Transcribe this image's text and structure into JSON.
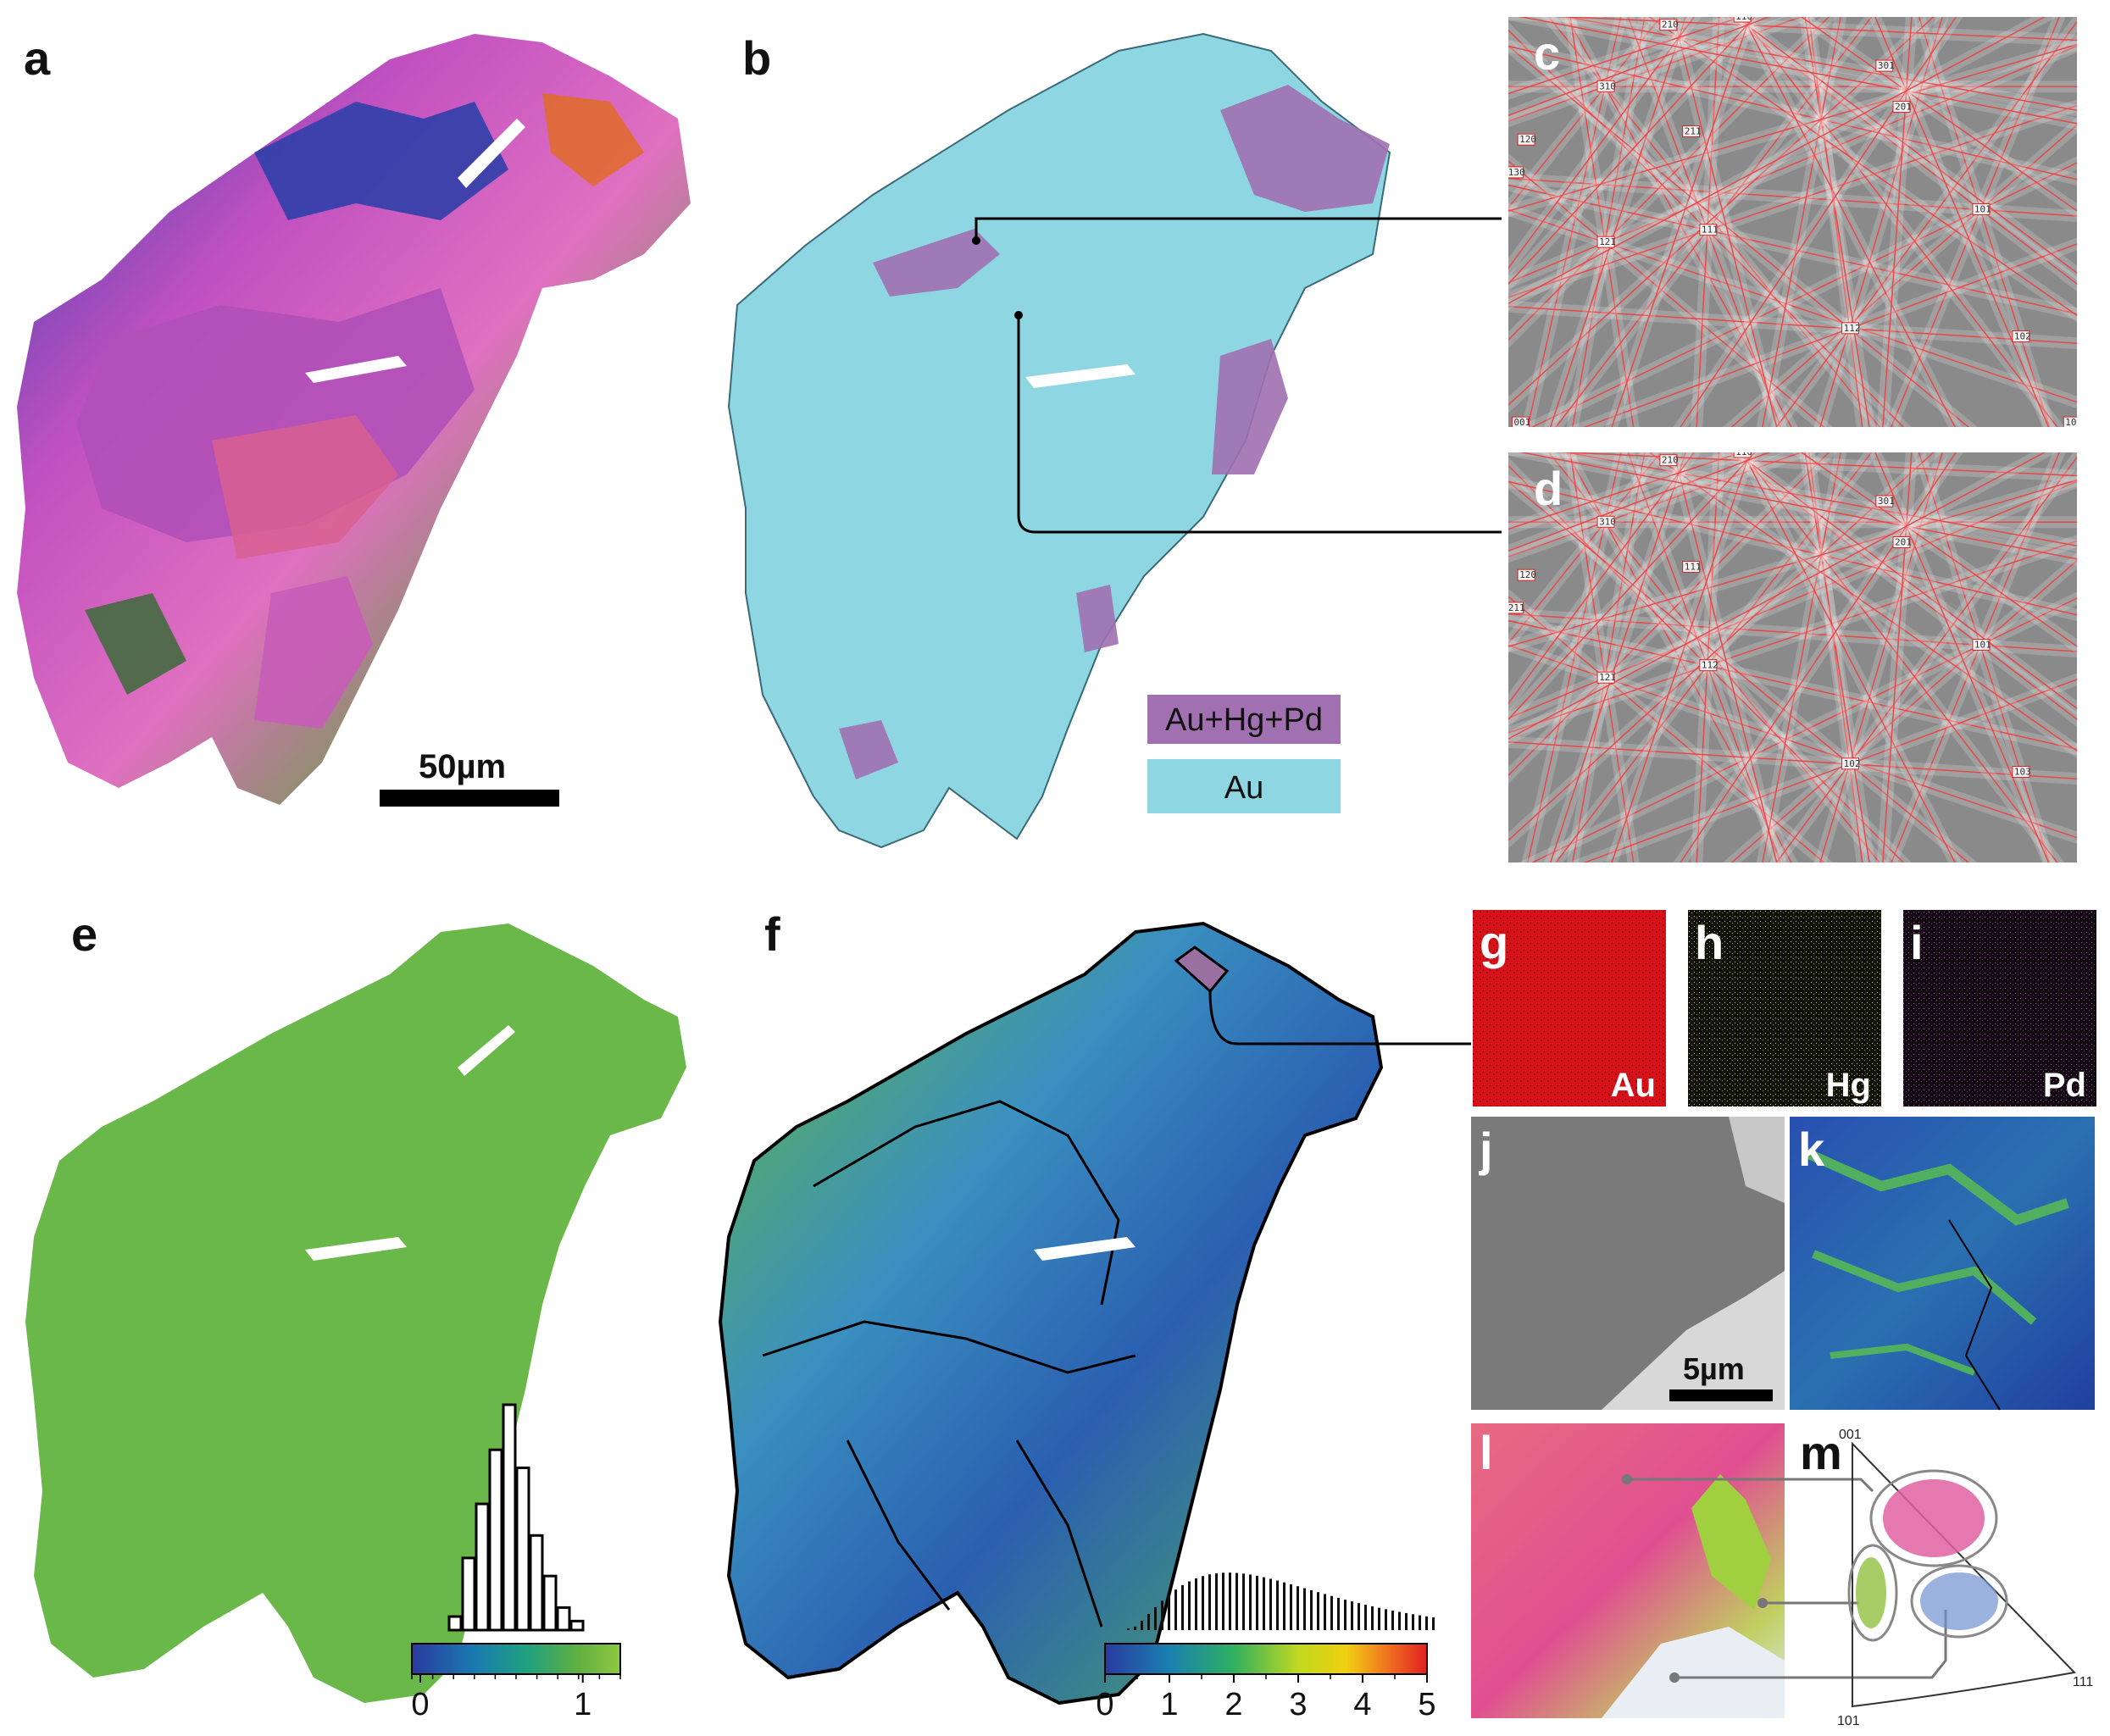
{
  "panels": {
    "a": {
      "label": "a",
      "scale_bar": "50µm"
    },
    "b": {
      "label": "b",
      "legend": [
        {
          "name": "Au+Hg+Pd",
          "color": "#a070b0"
        },
        {
          "name": "Au",
          "color": "#8fd6e3"
        }
      ]
    },
    "c": {
      "label": "c",
      "indices": [
        "310",
        "210",
        "110",
        "301",
        "201",
        "120",
        "130",
        "211",
        "101",
        "121",
        "111",
        "112",
        "102",
        "001",
        "103"
      ]
    },
    "d": {
      "label": "d",
      "indices": [
        "310",
        "210",
        "110",
        "301",
        "201",
        "120",
        "211",
        "111",
        "101",
        "121",
        "112",
        "102",
        "103"
      ]
    },
    "e": {
      "label": "e",
      "colorbar_ticks": [
        "0",
        "1"
      ],
      "histogram_heights": [
        0.06,
        0.32,
        0.56,
        0.8,
        1.0,
        0.72,
        0.42,
        0.24,
        0.1,
        0.04
      ]
    },
    "f": {
      "label": "f",
      "colorbar_ticks": [
        "0",
        "1",
        "2",
        "3",
        "4",
        "5"
      ]
    },
    "g": {
      "label": "g",
      "element": "Au",
      "color": "#e01020"
    },
    "h": {
      "label": "h",
      "element": "Hg",
      "color": "#e0e020"
    },
    "i": {
      "label": "i",
      "element": "Pd",
      "color": "#b030b0"
    },
    "j": {
      "label": "j",
      "scale_bar": "5µm"
    },
    "k": {
      "label": "k"
    },
    "l": {
      "label": "l"
    },
    "m": {
      "label": "m",
      "poles": [
        "001",
        "101",
        "111"
      ]
    }
  },
  "colors": {
    "au_cyan": "#8fd6e3",
    "hg_pd_purple": "#a070b0",
    "kikuchi_red": "#e02020"
  }
}
